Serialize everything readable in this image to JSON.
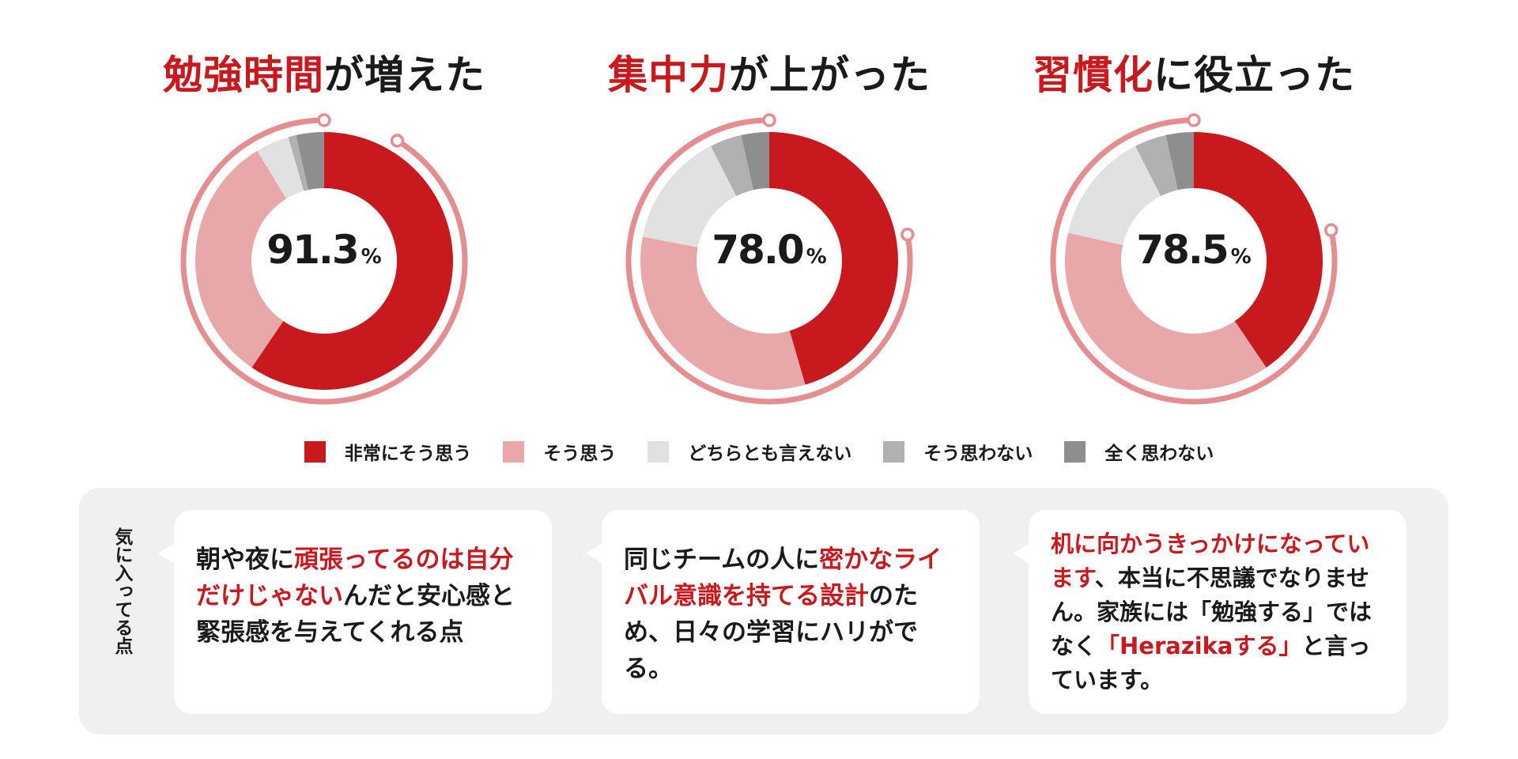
{
  "colors": {
    "strongly_agree": "#c8191f",
    "agree": "#e8a7a8",
    "neutral": "#e1e1e1",
    "disagree": "#b1b1b1",
    "strongly_disagree": "#8e8e8e",
    "accent_ring": "#e58e91",
    "highlight_text": "#c8191f"
  },
  "chart_data": [
    {
      "type": "pie",
      "title_highlight": "勉強時間",
      "title_rest": "が増えた",
      "center_value": "91.3",
      "center_unit": "%",
      "categories": [
        "非常にそう思う",
        "そう思う",
        "どちらとも言えない",
        "そう思わない",
        "全く思わない"
      ],
      "values": [
        59.5,
        31.8,
        4.2,
        1.0,
        3.5
      ],
      "highlighted_total": 91.3
    },
    {
      "type": "pie",
      "title_highlight": "集中力",
      "title_rest": "が上がった",
      "center_value": "78.0",
      "center_unit": "%",
      "categories": [
        "非常にそう思う",
        "そう思う",
        "どちらとも言えない",
        "そう思わない",
        "全く思わない"
      ],
      "values": [
        45.5,
        32.5,
        14.5,
        4.0,
        3.5
      ],
      "highlighted_total": 78.0
    },
    {
      "type": "pie",
      "title_highlight": "習慣化",
      "title_rest": "に役立った",
      "center_value": "78.5",
      "center_unit": "%",
      "categories": [
        "非常にそう思う",
        "そう思う",
        "どちらとも言えない",
        "そう思わない",
        "全く思わない"
      ],
      "values": [
        40.5,
        38.0,
        14.0,
        4.0,
        3.5
      ],
      "highlighted_total": 78.5
    }
  ],
  "legend": [
    {
      "label": "非常にそう思う",
      "color": "#c8191f"
    },
    {
      "label": "そう思う",
      "color": "#e8a7a8"
    },
    {
      "label": "どちらとも言えない",
      "color": "#e1e1e1"
    },
    {
      "label": "そう思わない",
      "color": "#b1b1b1"
    },
    {
      "label": "全く思わない",
      "color": "#8e8e8e"
    }
  ],
  "comments_label": "気に入ってる点",
  "comments": [
    [
      {
        "text": "朝や夜に",
        "hl": false
      },
      {
        "text": "頑張ってるのは自分だけじゃない",
        "hl": true
      },
      {
        "text": "んだと安心感と緊張感を与えてくれる点",
        "hl": false
      }
    ],
    [
      {
        "text": "同じチームの人に",
        "hl": false
      },
      {
        "text": "密かなライバル意識を持てる設計",
        "hl": true
      },
      {
        "text": "のため、日々の学習にハリがでる。",
        "hl": false
      }
    ],
    [
      {
        "text": "机に向かうきっかけになっています",
        "hl": true
      },
      {
        "text": "、本当に不思議でなりません。家族には「勉強する」ではなく",
        "hl": false
      },
      {
        "text": "「Herazikaする」",
        "hl": true
      },
      {
        "text": "と言っています。",
        "hl": false
      }
    ]
  ]
}
